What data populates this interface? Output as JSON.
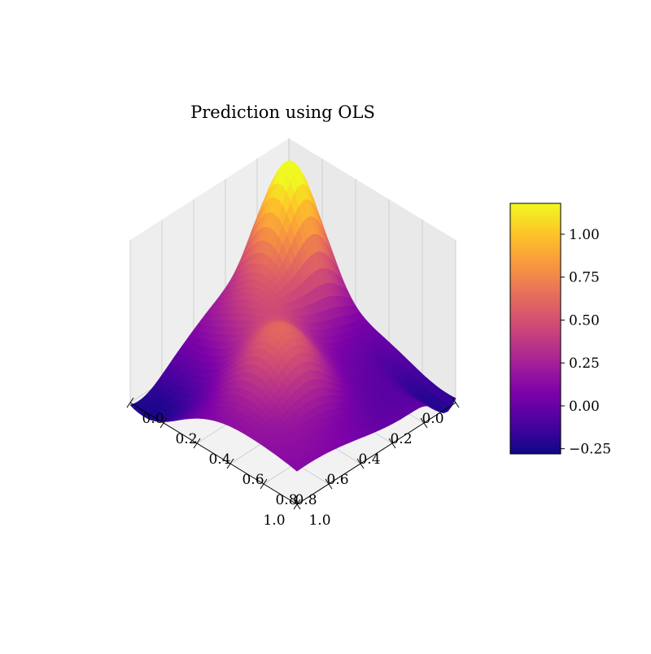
{
  "chart_data": {
    "type": "surface3d",
    "title": "Prediction using OLS",
    "colormap": "plasma",
    "x_axis": {
      "range": [
        0,
        1
      ],
      "ticks": [
        0.0,
        0.2,
        0.4,
        0.6,
        0.8,
        1.0
      ],
      "tick_labels": [
        "0.0",
        "0.2",
        "0.4",
        "0.6",
        "0.8",
        "1.0"
      ]
    },
    "y_axis": {
      "range": [
        0,
        1
      ],
      "ticks": [
        0.0,
        0.2,
        0.4,
        0.6,
        0.8,
        1.0
      ],
      "tick_labels": [
        "0.0",
        "0.2",
        "0.4",
        "0.6",
        "0.8",
        "1.0"
      ]
    },
    "z_range": [
      -0.25,
      1.2
    ],
    "grid": true,
    "colorbar": {
      "placement": "right",
      "range": [
        -0.28,
        1.18
      ],
      "ticks": [
        1.0,
        0.75,
        0.5,
        0.25,
        0.0,
        -0.25
      ],
      "tick_labels": [
        "1.00",
        "0.75",
        "0.50",
        "0.25",
        "0.00",
        "−0.25"
      ]
    }
  }
}
